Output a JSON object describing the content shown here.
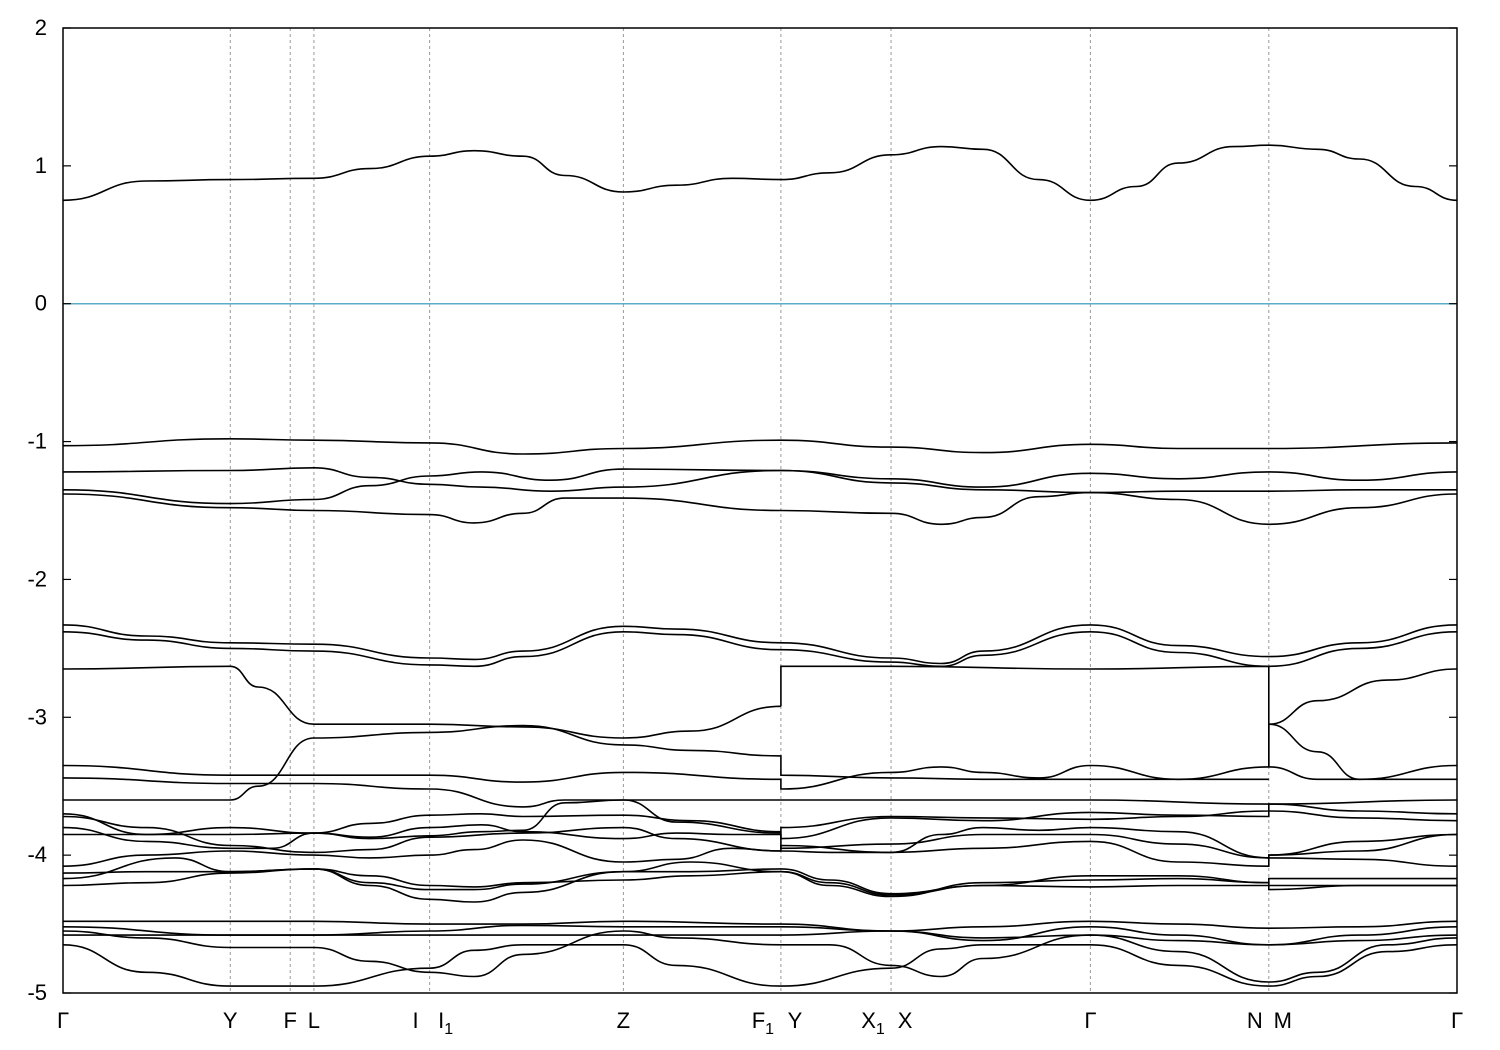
{
  "chart_data": {
    "type": "line",
    "title": "",
    "xlabel": "",
    "ylabel": "",
    "ylim": [
      -5,
      2
    ],
    "xlim": [
      0,
      1
    ],
    "grid": "vertical at high-symmetry points",
    "legend": "none",
    "colors": {
      "bands": "#000000",
      "fermi": "#5aaec8",
      "grid": "#999999"
    },
    "fermi_level": 0,
    "yticks": [
      "2",
      "1",
      "0",
      "-1",
      "-2",
      "-3",
      "-4",
      "-5"
    ],
    "kpoints": [
      {
        "x": 0.0,
        "label": "Γ",
        "sub": ""
      },
      {
        "x": 0.12,
        "label": "Y",
        "sub": ""
      },
      {
        "x": 0.163,
        "label": "F",
        "sub": ""
      },
      {
        "x": 0.18,
        "label": "L",
        "sub": ""
      },
      {
        "x": 0.263,
        "label": "I",
        "sub": ""
      },
      {
        "x": 0.263,
        "label": "I",
        "sub": "1"
      },
      {
        "x": 0.402,
        "label": "Z",
        "sub": ""
      },
      {
        "x": 0.515,
        "label": "F",
        "sub": "1"
      },
      {
        "x": 0.515,
        "label": "Y",
        "sub": ""
      },
      {
        "x": 0.594,
        "label": "X",
        "sub": "1"
      },
      {
        "x": 0.594,
        "label": "X",
        "sub": ""
      },
      {
        "x": 0.737,
        "label": "Γ",
        "sub": ""
      },
      {
        "x": 0.865,
        "label": "N",
        "sub": ""
      },
      {
        "x": 0.865,
        "label": "M",
        "sub": ""
      },
      {
        "x": 1.0,
        "label": "Γ",
        "sub": ""
      }
    ],
    "series": [
      {
        "x": [
          0,
          0.06,
          0.12,
          0.18,
          0.22,
          0.263,
          0.295,
          0.33,
          0.36,
          0.402,
          0.44,
          0.48,
          0.515,
          0.55,
          0.594,
          0.63,
          0.66,
          0.7,
          0.737,
          0.77,
          0.8,
          0.84,
          0.865,
          0.9,
          0.93,
          0.97,
          1.0
        ],
        "values": [
          0.75,
          0.89,
          0.9,
          0.91,
          0.98,
          1.07,
          1.11,
          1.07,
          0.93,
          0.81,
          0.86,
          0.91,
          0.9,
          0.95,
          1.08,
          1.14,
          1.12,
          0.9,
          0.75,
          0.85,
          1.02,
          1.14,
          1.15,
          1.12,
          1.05,
          0.85,
          0.75
        ]
      },
      {
        "x": [
          0,
          0.12,
          0.18,
          0.263,
          0.33,
          0.402,
          0.515,
          0.594,
          0.66,
          0.737,
          0.8,
          0.865,
          1.0
        ],
        "values": [
          -1.03,
          -0.98,
          -0.99,
          -1.01,
          -1.09,
          -1.05,
          -0.99,
          -1.04,
          -1.08,
          -1.02,
          -1.05,
          -1.05,
          -1.01
        ]
      },
      {
        "x": [
          0,
          0.12,
          0.18,
          0.22,
          0.263,
          0.3,
          0.35,
          0.402,
          0.515,
          0.594,
          0.66,
          0.737,
          0.8,
          0.865,
          0.93,
          1.0
        ],
        "values": [
          -1.22,
          -1.21,
          -1.19,
          -1.26,
          -1.31,
          -1.33,
          -1.36,
          -1.33,
          -1.21,
          -1.27,
          -1.33,
          -1.23,
          -1.27,
          -1.22,
          -1.28,
          -1.22
        ]
      },
      {
        "x": [
          0,
          0.12,
          0.18,
          0.22,
          0.263,
          0.3,
          0.35,
          0.402,
          0.515,
          0.594,
          0.66,
          0.737,
          0.8,
          0.865,
          0.93,
          1.0
        ],
        "values": [
          -1.35,
          -1.45,
          -1.42,
          -1.32,
          -1.25,
          -1.22,
          -1.28,
          -1.2,
          -1.21,
          -1.3,
          -1.35,
          -1.37,
          -1.36,
          -1.36,
          -1.35,
          -1.35
        ]
      },
      {
        "x": [
          0,
          0.12,
          0.18,
          0.263,
          0.295,
          0.33,
          0.36,
          0.402,
          0.515,
          0.594,
          0.63,
          0.66,
          0.7,
          0.737,
          0.8,
          0.865,
          0.93,
          1.0
        ],
        "values": [
          -1.38,
          -1.48,
          -1.5,
          -1.53,
          -1.59,
          -1.52,
          -1.41,
          -1.41,
          -1.5,
          -1.52,
          -1.6,
          -1.55,
          -1.4,
          -1.37,
          -1.42,
          -1.6,
          -1.48,
          -1.38
        ]
      },
      {
        "x": [
          0,
          0.06,
          0.12,
          0.18,
          0.263,
          0.295,
          0.33,
          0.402,
          0.44,
          0.515,
          0.594,
          0.63,
          0.66,
          0.737,
          0.8,
          0.865,
          0.93,
          1.0
        ],
        "values": [
          -2.33,
          -2.41,
          -2.46,
          -2.47,
          -2.57,
          -2.58,
          -2.52,
          -2.34,
          -2.36,
          -2.46,
          -2.57,
          -2.61,
          -2.52,
          -2.33,
          -2.48,
          -2.56,
          -2.46,
          -2.33
        ]
      },
      {
        "x": [
          0,
          0.06,
          0.12,
          0.18,
          0.263,
          0.295,
          0.33,
          0.402,
          0.44,
          0.515,
          0.594,
          0.63,
          0.66,
          0.737,
          0.8,
          0.865,
          0.93,
          1.0
        ],
        "values": [
          -2.38,
          -2.44,
          -2.5,
          -2.52,
          -2.62,
          -2.63,
          -2.56,
          -2.38,
          -2.4,
          -2.51,
          -2.6,
          -2.63,
          -2.55,
          -2.38,
          -2.53,
          -2.63,
          -2.5,
          -2.38
        ]
      },
      {
        "x": [
          0,
          0.12,
          0.14,
          0.18,
          0.263,
          0.33,
          0.402,
          0.45,
          0.515
        ],
        "values": [
          -2.65,
          -2.63,
          -2.78,
          -3.05,
          -3.05,
          -3.07,
          -3.15,
          -3.1,
          -2.92
        ]
      },
      {
        "x": [
          0.515,
          0.515,
          0.594,
          0.737,
          0.865,
          0.865
        ],
        "values": [
          -2.92,
          -2.63,
          -2.63,
          -2.65,
          -2.63,
          -3.36
        ]
      },
      {
        "x": [
          0.865,
          0.865,
          0.9,
          0.95,
          1.0
        ],
        "values": [
          -3.36,
          -3.05,
          -2.88,
          -2.73,
          -2.65
        ]
      },
      {
        "x": [
          0,
          0.12,
          0.14,
          0.18,
          0.263,
          0.33,
          0.402,
          0.45,
          0.515,
          0.515,
          0.594,
          0.66,
          0.737,
          0.8,
          0.865
        ],
        "values": [
          -3.6,
          -3.6,
          -3.5,
          -3.15,
          -3.11,
          -3.06,
          -3.2,
          -3.24,
          -3.28,
          -3.42,
          -3.44,
          -3.45,
          -3.45,
          -3.45,
          -3.45
        ]
      },
      {
        "x": [
          0.865,
          0.9,
          0.93,
          1.0
        ],
        "values": [
          -3.05,
          -3.25,
          -3.45,
          -3.35
        ]
      },
      {
        "x": [
          0,
          0.12,
          0.18,
          0.263,
          0.33,
          0.402,
          0.515,
          0.515,
          0.594,
          0.63,
          0.66,
          0.7,
          0.737,
          0.8,
          0.865,
          0.9,
          1.0
        ],
        "values": [
          -3.35,
          -3.42,
          -3.42,
          -3.42,
          -3.47,
          -3.4,
          -3.45,
          -3.52,
          -3.4,
          -3.36,
          -3.4,
          -3.44,
          -3.35,
          -3.45,
          -3.36,
          -3.45,
          -3.45
        ]
      },
      {
        "x": [
          0,
          0.12,
          0.18,
          0.263,
          0.33,
          0.36,
          0.402,
          0.515,
          0.515,
          0.594,
          0.737,
          0.865,
          1.0
        ],
        "values": [
          -3.44,
          -3.48,
          -3.48,
          -3.52,
          -3.65,
          -3.6,
          -3.6,
          -3.6,
          -3.6,
          -3.6,
          -3.6,
          -3.63,
          -3.6
        ]
      },
      {
        "x": [
          0,
          0.06,
          0.12,
          0.18,
          0.22,
          0.263,
          0.3,
          0.33,
          0.402,
          0.45,
          0.515,
          0.515,
          0.594,
          0.66,
          0.737,
          0.8,
          0.865,
          0.865,
          0.93,
          1.0
        ],
        "values": [
          -3.7,
          -3.85,
          -3.85,
          -3.84,
          -3.77,
          -3.71,
          -3.7,
          -3.72,
          -3.71,
          -3.75,
          -3.83,
          -3.8,
          -3.72,
          -3.73,
          -3.74,
          -3.72,
          -3.68,
          -3.63,
          -3.68,
          -3.7
        ]
      },
      {
        "x": [
          0,
          0.06,
          0.12,
          0.18,
          0.22,
          0.263,
          0.3,
          0.33,
          0.36,
          0.402,
          0.44,
          0.515,
          0.515,
          0.594,
          0.66,
          0.737,
          0.8,
          0.865,
          0.865,
          0.93,
          1.0
        ],
        "values": [
          -3.85,
          -3.85,
          -3.8,
          -3.84,
          -3.88,
          -3.86,
          -3.83,
          -3.82,
          -3.62,
          -3.6,
          -3.76,
          -3.84,
          -3.88,
          -3.73,
          -3.75,
          -3.69,
          -3.71,
          -3.72,
          -3.68,
          -3.73,
          -3.75
        ]
      },
      {
        "x": [
          0,
          0.06,
          0.12,
          0.18,
          0.22,
          0.263,
          0.33,
          0.402,
          0.44,
          0.515,
          0.515,
          0.594,
          0.66,
          0.737,
          0.8,
          0.865,
          0.865,
          0.93,
          1.0
        ],
        "values": [
          -3.72,
          -3.8,
          -3.93,
          -3.98,
          -3.96,
          -3.87,
          -3.84,
          -3.8,
          -3.88,
          -3.97,
          -3.93,
          -3.98,
          -3.95,
          -3.9,
          -4.05,
          -4.08,
          -4.0,
          -3.97,
          -3.85
        ]
      },
      {
        "x": [
          0,
          0.06,
          0.12,
          0.15,
          0.18,
          0.22,
          0.263,
          0.3,
          0.33,
          0.402,
          0.44,
          0.48,
          0.515,
          0.515,
          0.594,
          0.66,
          0.737,
          0.8,
          0.865,
          0.865,
          0.93,
          1.0
        ],
        "values": [
          -3.8,
          -3.9,
          -3.95,
          -3.95,
          -3.84,
          -3.87,
          -3.8,
          -3.78,
          -3.83,
          -3.88,
          -3.84,
          -3.85,
          -3.85,
          -3.95,
          -3.92,
          -3.85,
          -3.85,
          -3.92,
          -4.02,
          -4.0,
          -3.9,
          -3.85
        ]
      },
      {
        "x": [
          0,
          0.06,
          0.12,
          0.18,
          0.22,
          0.263,
          0.295,
          0.33,
          0.402,
          0.44,
          0.48,
          0.515,
          0.55,
          0.594,
          0.63,
          0.66,
          0.7,
          0.737,
          0.8,
          0.865,
          0.93,
          1.0
        ],
        "values": [
          -4.08,
          -4.0,
          -3.97,
          -4.0,
          -4.02,
          -4.0,
          -3.96,
          -3.89,
          -4.05,
          -4.03,
          -3.95,
          -3.97,
          -3.98,
          -3.98,
          -3.85,
          -3.8,
          -3.82,
          -3.8,
          -3.83,
          -4.02,
          -4.03,
          -4.08
        ]
      },
      {
        "x": [
          0,
          0.08,
          0.12,
          0.18,
          0.22,
          0.263,
          0.295,
          0.33,
          0.402,
          0.45,
          0.515,
          0.55,
          0.594,
          0.66,
          0.737,
          0.8,
          0.865,
          0.865,
          0.93,
          1.0
        ],
        "values": [
          -4.17,
          -4.02,
          -4.12,
          -4.1,
          -4.2,
          -4.25,
          -4.25,
          -4.21,
          -4.12,
          -4.05,
          -4.12,
          -4.22,
          -4.3,
          -4.2,
          -4.18,
          -4.17,
          -4.2,
          -4.25,
          -4.22,
          -4.22
        ]
      },
      {
        "x": [
          0,
          0.06,
          0.12,
          0.18,
          0.22,
          0.263,
          0.295,
          0.33,
          0.402,
          0.45,
          0.515,
          0.55,
          0.594,
          0.66,
          0.737,
          0.8,
          0.865,
          0.865,
          0.93,
          1.0
        ],
        "values": [
          -4.13,
          -4.12,
          -4.12,
          -4.1,
          -4.22,
          -4.32,
          -4.34,
          -4.27,
          -4.12,
          -4.12,
          -4.1,
          -4.18,
          -4.28,
          -4.22,
          -4.15,
          -4.15,
          -4.2,
          -4.17,
          -4.17,
          -4.17
        ]
      },
      {
        "x": [
          0,
          0.06,
          0.12,
          0.18,
          0.22,
          0.263,
          0.295,
          0.33,
          0.402,
          0.45,
          0.515,
          0.55,
          0.594,
          0.66,
          0.737,
          0.8,
          0.865,
          0.93,
          1.0
        ],
        "values": [
          -4.22,
          -4.2,
          -4.13,
          -4.1,
          -4.15,
          -4.22,
          -4.23,
          -4.2,
          -4.18,
          -4.15,
          -4.12,
          -4.2,
          -4.29,
          -4.22,
          -4.23,
          -4.22,
          -4.22,
          -4.22,
          -4.22
        ]
      },
      {
        "x": [
          0,
          0.12,
          0.18,
          0.263,
          0.33,
          0.402,
          0.515,
          0.594,
          0.66,
          0.737,
          0.8,
          0.865,
          0.93,
          1.0
        ],
        "values": [
          -4.48,
          -4.48,
          -4.48,
          -4.5,
          -4.5,
          -4.48,
          -4.5,
          -4.55,
          -4.52,
          -4.48,
          -4.5,
          -4.53,
          -4.52,
          -4.48
        ]
      },
      {
        "x": [
          0,
          0.12,
          0.18,
          0.263,
          0.33,
          0.402,
          0.515,
          0.594,
          0.66,
          0.737,
          0.8,
          0.865,
          0.93,
          1.0
        ],
        "values": [
          -4.52,
          -4.58,
          -4.58,
          -4.55,
          -4.51,
          -4.52,
          -4.52,
          -4.55,
          -4.62,
          -4.52,
          -4.58,
          -4.65,
          -4.58,
          -4.52
        ]
      },
      {
        "x": [
          0,
          0.12,
          0.18,
          0.263,
          0.33,
          0.402,
          0.515,
          0.594,
          0.66,
          0.737,
          0.8,
          0.865,
          0.93,
          1.0
        ],
        "values": [
          -4.58,
          -4.58,
          -4.58,
          -4.58,
          -4.58,
          -4.58,
          -4.58,
          -4.55,
          -4.6,
          -4.58,
          -4.62,
          -4.65,
          -4.62,
          -4.58
        ]
      },
      {
        "x": [
          0,
          0.06,
          0.12,
          0.18,
          0.263,
          0.295,
          0.33,
          0.402,
          0.44,
          0.515,
          0.594,
          0.63,
          0.66,
          0.737,
          0.8,
          0.865,
          0.9,
          0.95,
          1.0
        ],
        "values": [
          -4.65,
          -4.85,
          -4.95,
          -4.95,
          -4.82,
          -4.69,
          -4.65,
          -4.65,
          -4.8,
          -4.95,
          -4.82,
          -4.68,
          -4.65,
          -4.65,
          -4.8,
          -4.95,
          -4.88,
          -4.7,
          -4.65
        ]
      },
      {
        "x": [
          0,
          0.06,
          0.12,
          0.18,
          0.22,
          0.263,
          0.295,
          0.33,
          0.402,
          0.44,
          0.515,
          0.55,
          0.594,
          0.63,
          0.66,
          0.737,
          0.8,
          0.865,
          0.9,
          0.95,
          1.0
        ],
        "values": [
          -4.55,
          -4.6,
          -4.67,
          -4.67,
          -4.77,
          -4.85,
          -4.88,
          -4.72,
          -4.55,
          -4.6,
          -4.65,
          -4.65,
          -4.8,
          -4.88,
          -4.75,
          -4.58,
          -4.7,
          -4.92,
          -4.85,
          -4.65,
          -4.6
        ]
      }
    ]
  }
}
